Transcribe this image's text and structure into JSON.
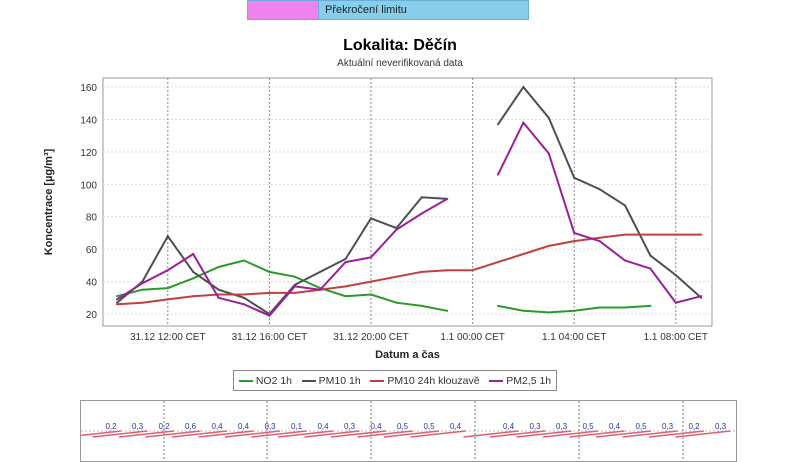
{
  "top_legend": {
    "label": "Překročení limitu",
    "swatch_color": "#ee82ee",
    "bg_color": "#87ceeb"
  },
  "chart_data": {
    "type": "line",
    "title": "Lokalita: Děčín",
    "subtitle": "Aktuální neverifikovaná data",
    "xlabel": "Datum a čas",
    "ylabel": "Koncentrace [µg/m³]",
    "ylim": [
      15,
      165
    ],
    "yticks": [
      20,
      40,
      60,
      80,
      100,
      120,
      140,
      160
    ],
    "x": [
      "31.12 10:00",
      "31.12 11:00",
      "31.12 12:00",
      "31.12 13:00",
      "31.12 14:00",
      "31.12 15:00",
      "31.12 16:00",
      "31.12 17:00",
      "31.12 18:00",
      "31.12 19:00",
      "31.12 20:00",
      "31.12 21:00",
      "31.12 22:00",
      "31.12 23:00",
      "1.1 00:00",
      "1.1 01:00",
      "1.1 02:00",
      "1.1 03:00",
      "1.1 04:00",
      "1.1 05:00",
      "1.1 06:00",
      "1.1 07:00",
      "1.1 08:00",
      "1.1 09:00"
    ],
    "xticks": [
      {
        "label": "31.12 12:00 CET",
        "at": "31.12 12:00"
      },
      {
        "label": "31.12 16:00 CET",
        "at": "31.12 16:00"
      },
      {
        "label": "31.12 20:00 CET",
        "at": "31.12 20:00"
      },
      {
        "label": "1.1 00:00 CET",
        "at": "1.1 00:00"
      },
      {
        "label": "1.1 04:00 CET",
        "at": "1.1 04:00"
      },
      {
        "label": "1.1 08:00 CET",
        "at": "1.1 08:00"
      }
    ],
    "grid": true,
    "legend_position": "bottom",
    "series": [
      {
        "name": "NO2 1h",
        "color": "#2a9a2a",
        "values": [
          31,
          35,
          36,
          42,
          49,
          53,
          46,
          43,
          36,
          31,
          32,
          27,
          25,
          22,
          null,
          25,
          22,
          21,
          22,
          24,
          24,
          25,
          null,
          null
        ]
      },
      {
        "name": "PM10 1h",
        "color": "#4a5050",
        "values": [
          27,
          40,
          68,
          46,
          35,
          30,
          20,
          38,
          46,
          54,
          79,
          73,
          92,
          91,
          null,
          137,
          160,
          141,
          104,
          97,
          87,
          56,
          44,
          30
        ]
      },
      {
        "name": "PM10 24h klouzavě",
        "color": "#c04040",
        "values": [
          26,
          27,
          29,
          31,
          32,
          32,
          33,
          33,
          35,
          37,
          40,
          43,
          46,
          47,
          47,
          52,
          57,
          62,
          65,
          67,
          69,
          69,
          69,
          69
        ]
      },
      {
        "name": "PM2,5 1h",
        "color": "#9b1f9b",
        "values": [
          29,
          39,
          47,
          57,
          30,
          26,
          19,
          37,
          35,
          52,
          55,
          72,
          82,
          91,
          null,
          106,
          138,
          119,
          70,
          65,
          53,
          48,
          27,
          31
        ]
      }
    ]
  },
  "wind": {
    "labels": [
      "0,2",
      "0,3",
      "0,2",
      "0,6",
      "0,4",
      "0,4",
      "0,3",
      "0,1",
      "0,4",
      "0,3",
      "0,4",
      "0,5",
      "0,5",
      "0,4",
      "",
      "0,4",
      "0,3",
      "0,3",
      "0,5",
      "0,4",
      "0,5",
      "0,3",
      "0,2",
      "0,3"
    ]
  }
}
